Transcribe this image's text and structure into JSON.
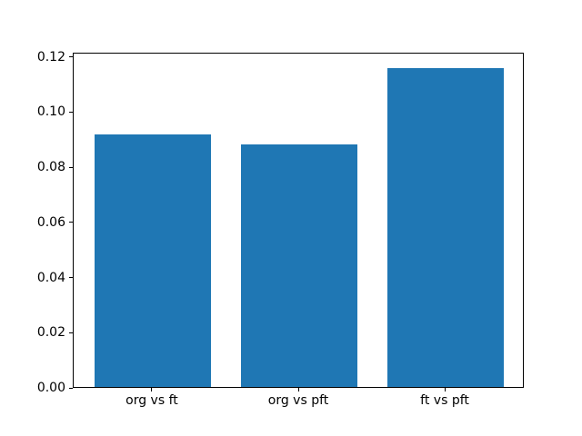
{
  "chart_data": {
    "type": "bar",
    "categories": [
      "org vs ft",
      "org vs pft",
      "ft vs pft"
    ],
    "values": [
      0.0915,
      0.0878,
      0.1157
    ],
    "title": "",
    "xlabel": "",
    "ylabel": "",
    "ylim": [
      0,
      0.1215
    ],
    "yticks": [
      0.0,
      0.02,
      0.04,
      0.06,
      0.08,
      0.1,
      0.12
    ],
    "ytick_labels": [
      "0.00",
      "0.02",
      "0.04",
      "0.06",
      "0.08",
      "0.10",
      "0.12"
    ],
    "bar_color": "#1f77b4",
    "bar_relative_width": 0.8,
    "grid": false,
    "legend": null,
    "background_color": "#ffffff",
    "spine_color": "#000000"
  }
}
